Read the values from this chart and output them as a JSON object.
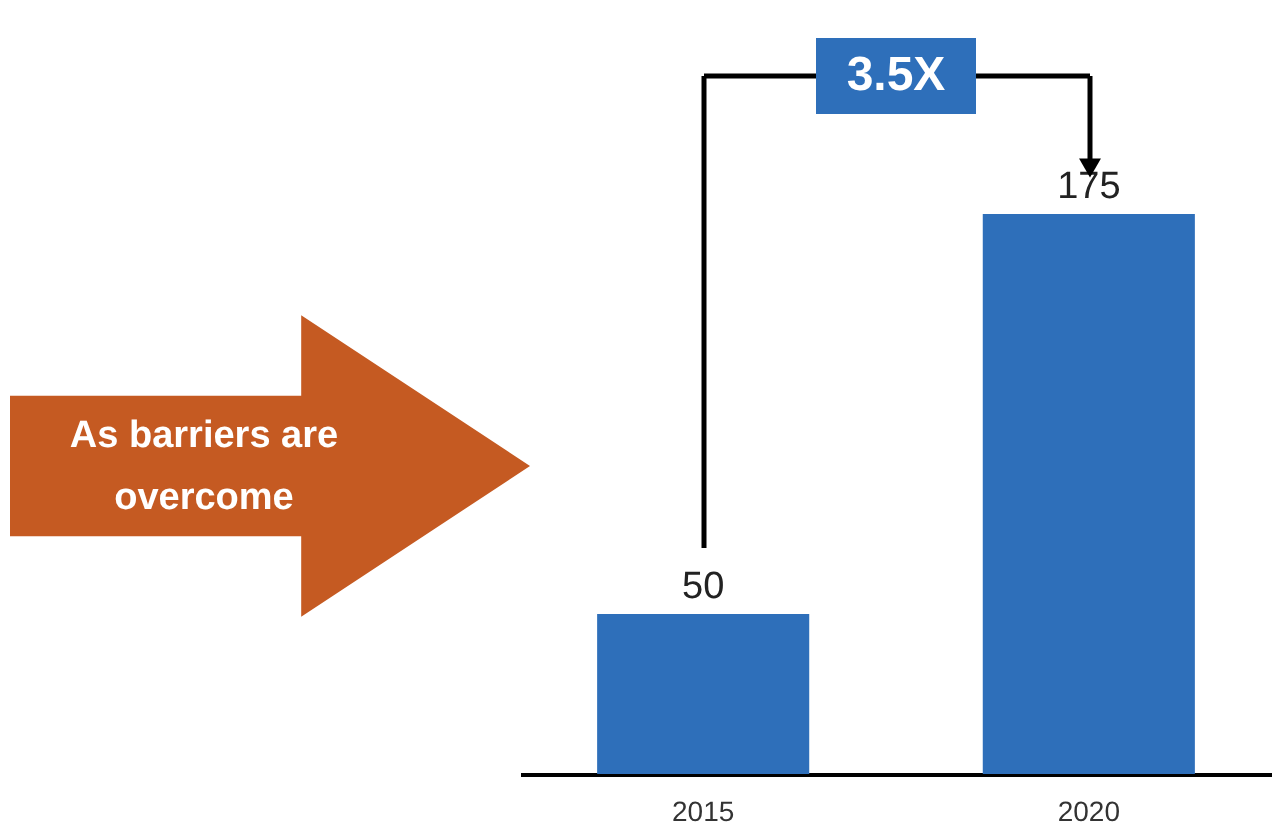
{
  "chart_data": {
    "type": "bar",
    "categories": [
      "2015",
      "2020"
    ],
    "values": [
      50,
      175
    ],
    "color": "#2e6fba",
    "data_labels": true,
    "annotations": [
      "As barriers are overcome",
      "3.5X"
    ]
  }
}
